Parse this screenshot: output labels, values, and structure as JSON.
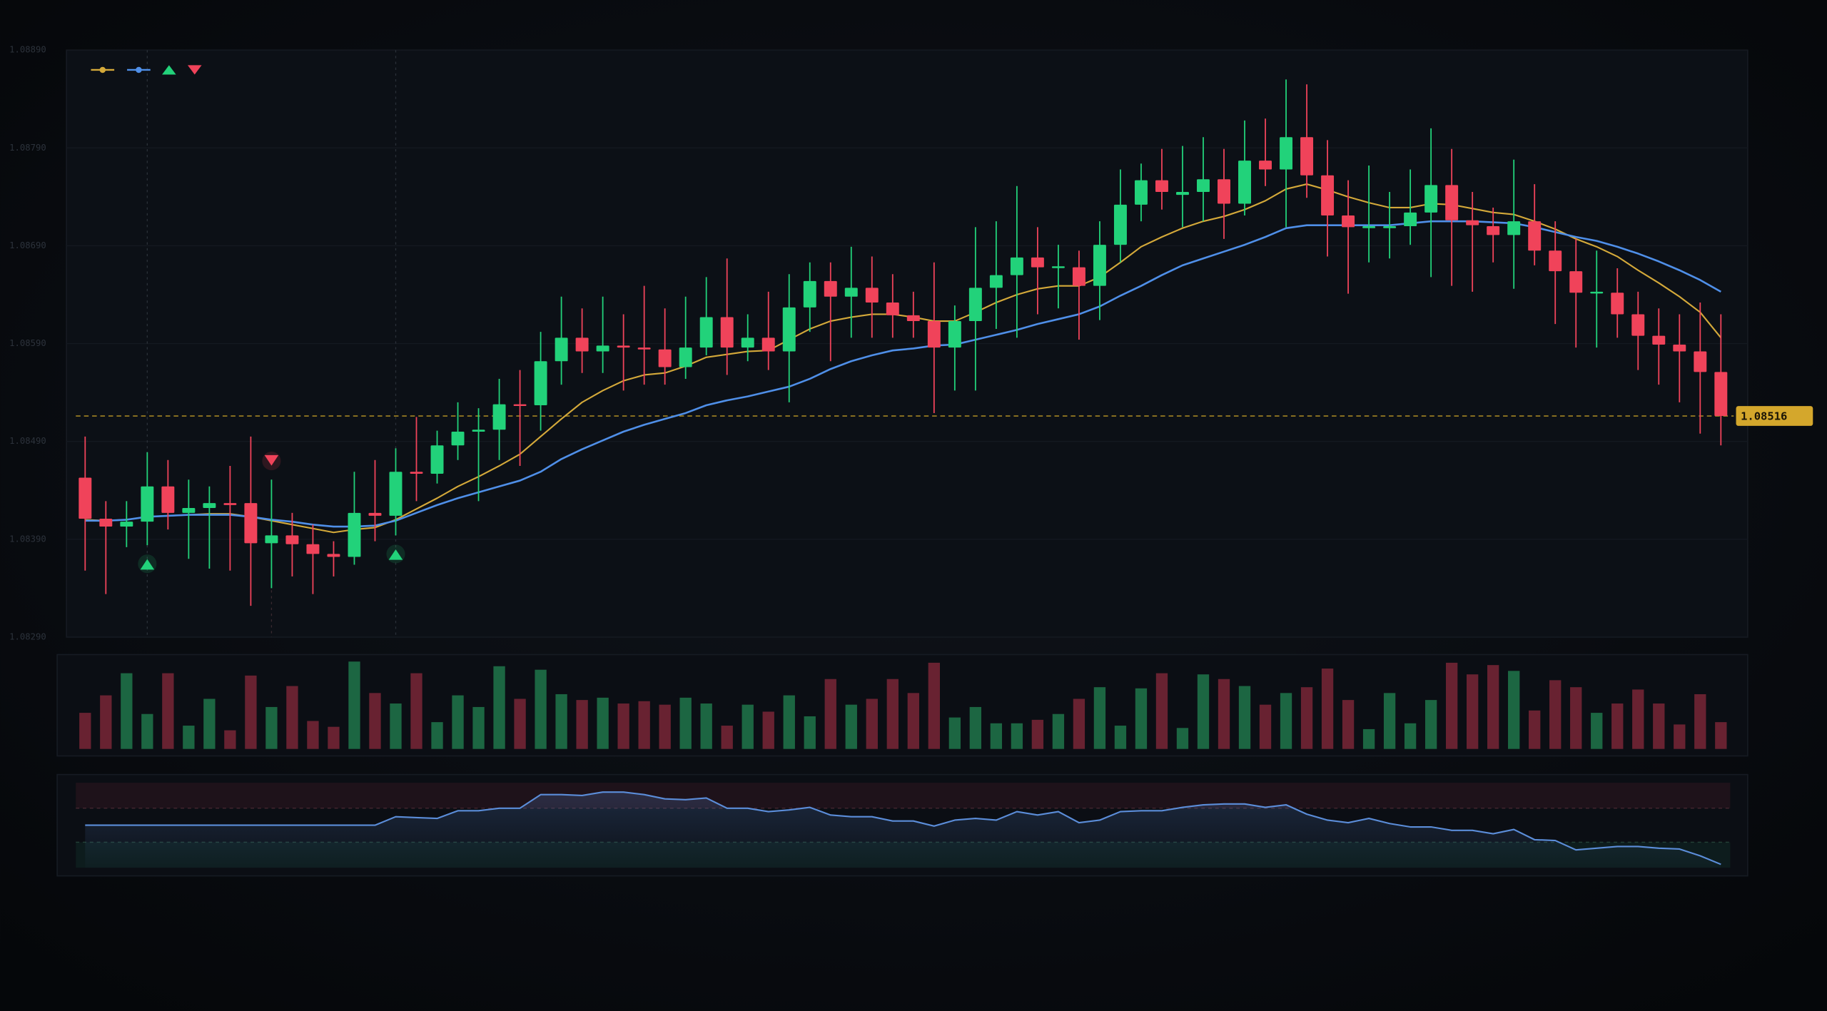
{
  "chart_data": {
    "type": "candlestick",
    "open": [
      1.08453,
      1.08411,
      1.08403,
      1.08408,
      1.08444,
      1.08417,
      1.08422,
      1.08427,
      1.08427,
      1.08386,
      1.08394,
      1.08385,
      1.08375,
      1.08372,
      1.08417,
      1.08414,
      1.08459,
      1.08457,
      1.08486,
      1.085,
      1.08502,
      1.08528,
      1.08527,
      1.08572,
      1.08596,
      1.08582,
      1.08588,
      1.08586,
      1.08584,
      1.08566,
      1.08586,
      1.08617,
      1.08586,
      1.08596,
      1.08582,
      1.08627,
      1.08654,
      1.08638,
      1.08647,
      1.08632,
      1.08619,
      1.08613,
      1.08586,
      1.08613,
      1.08647,
      1.0866,
      1.08678,
      1.08668,
      1.08668,
      1.08649,
      1.08691,
      1.08732,
      1.08757,
      1.08742,
      1.08745,
      1.08758,
      1.08733,
      1.08777,
      1.08768,
      1.08801,
      1.08762,
      1.08721,
      1.08708,
      1.08708,
      1.0871,
      1.08724,
      1.08752,
      1.08716,
      1.0871,
      1.08701,
      1.08715,
      1.08685,
      1.08664,
      1.08642,
      1.08642,
      1.0862,
      1.08598,
      1.08589,
      1.08582,
      1.08561
    ],
    "high": [
      1.08495,
      1.08429,
      1.08429,
      1.08479,
      1.08471,
      1.08451,
      1.08444,
      1.08465,
      1.08495,
      1.08451,
      1.08417,
      1.08405,
      1.08388,
      1.08459,
      1.08471,
      1.08483,
      1.08515,
      1.08501,
      1.0853,
      1.08524,
      1.08554,
      1.08563,
      1.08602,
      1.08638,
      1.08626,
      1.08638,
      1.0862,
      1.08649,
      1.08626,
      1.08638,
      1.08658,
      1.08677,
      1.0862,
      1.08643,
      1.08661,
      1.08673,
      1.08673,
      1.08689,
      1.08679,
      1.08661,
      1.08643,
      1.08673,
      1.08629,
      1.08709,
      1.08715,
      1.08751,
      1.08709,
      1.08691,
      1.08685,
      1.08715,
      1.08768,
      1.08774,
      1.08789,
      1.08792,
      1.08801,
      1.08789,
      1.08818,
      1.0882,
      1.0886,
      1.08855,
      1.08798,
      1.08757,
      1.08772,
      1.08745,
      1.08768,
      1.0881,
      1.08789,
      1.08745,
      1.08729,
      1.08778,
      1.08753,
      1.08715,
      1.08697,
      1.08685,
      1.08667,
      1.08643,
      1.08626,
      1.0862,
      1.08632,
      1.0862
    ],
    "low": [
      1.08358,
      1.08334,
      1.08382,
      1.08384,
      1.084,
      1.0837,
      1.0836,
      1.08358,
      1.08322,
      1.0834,
      1.08352,
      1.08334,
      1.08352,
      1.08364,
      1.08388,
      1.08394,
      1.08429,
      1.08447,
      1.08471,
      1.08429,
      1.08471,
      1.08465,
      1.08501,
      1.08548,
      1.0856,
      1.0856,
      1.08542,
      1.08548,
      1.08548,
      1.08554,
      1.08578,
      1.08558,
      1.08572,
      1.08563,
      1.0853,
      1.08602,
      1.08572,
      1.08596,
      1.08596,
      1.08596,
      1.08596,
      1.08519,
      1.08542,
      1.08542,
      1.08605,
      1.08596,
      1.0862,
      1.08626,
      1.08594,
      1.08614,
      1.08673,
      1.08715,
      1.08727,
      1.08709,
      1.08715,
      1.08697,
      1.08721,
      1.08751,
      1.08709,
      1.08739,
      1.08679,
      1.08641,
      1.08673,
      1.08677,
      1.08691,
      1.08658,
      1.08649,
      1.08643,
      1.08673,
      1.08646,
      1.0867,
      1.0861,
      1.08586,
      1.08586,
      1.08596,
      1.08563,
      1.08548,
      1.0853,
      1.08498,
      1.08486
    ],
    "close": [
      1.08411,
      1.08403,
      1.08408,
      1.08444,
      1.08417,
      1.08422,
      1.08427,
      1.08425,
      1.08386,
      1.08394,
      1.08385,
      1.08375,
      1.08372,
      1.08417,
      1.08414,
      1.08459,
      1.08457,
      1.08486,
      1.085,
      1.08502,
      1.08528,
      1.08527,
      1.08572,
      1.08596,
      1.08582,
      1.08588,
      1.08586,
      1.08584,
      1.08566,
      1.08586,
      1.08617,
      1.08586,
      1.08596,
      1.08582,
      1.08627,
      1.08654,
      1.08638,
      1.08647,
      1.08632,
      1.08619,
      1.08613,
      1.08586,
      1.08613,
      1.08647,
      1.0866,
      1.08678,
      1.08668,
      1.08669,
      1.08649,
      1.08691,
      1.08732,
      1.08757,
      1.08745,
      1.08745,
      1.08758,
      1.08733,
      1.08777,
      1.08768,
      1.08801,
      1.08762,
      1.08721,
      1.08709,
      1.0871,
      1.0871,
      1.08724,
      1.08752,
      1.08716,
      1.08711,
      1.08701,
      1.08715,
      1.08685,
      1.08664,
      1.08642,
      1.08643,
      1.0862,
      1.08598,
      1.08589,
      1.08582,
      1.08561,
      1.08516
    ],
    "up_color": "#22d27a",
    "down_color": "#f0435a",
    "series": [
      {
        "color": "#d4a93a",
        "values": [
          1.0841,
          1.08409,
          1.0841,
          1.08413,
          1.08414,
          1.08415,
          1.08416,
          1.08416,
          1.08413,
          1.08409,
          1.08405,
          1.08401,
          1.08397,
          1.084,
          1.08402,
          1.0841,
          1.08421,
          1.08432,
          1.08444,
          1.08454,
          1.08465,
          1.08477,
          1.08495,
          1.08513,
          1.0853,
          1.08542,
          1.08552,
          1.08558,
          1.0856,
          1.08567,
          1.08576,
          1.08579,
          1.08582,
          1.08583,
          1.08594,
          1.08605,
          1.08613,
          1.08617,
          1.0862,
          1.0862,
          1.08617,
          1.08613,
          1.08613,
          1.08622,
          1.08632,
          1.0864,
          1.08646,
          1.08649,
          1.08649,
          1.08658,
          1.08673,
          1.08689,
          1.08699,
          1.08708,
          1.08715,
          1.0872,
          1.08727,
          1.08736,
          1.08748,
          1.08753,
          1.08747,
          1.0874,
          1.08734,
          1.08729,
          1.08729,
          1.08733,
          1.08732,
          1.08728,
          1.08724,
          1.08722,
          1.08715,
          1.08707,
          1.08697,
          1.08689,
          1.08679,
          1.08665,
          1.08652,
          1.08638,
          1.08622,
          1.08596
        ]
      },
      {
        "color": "#4f8fe8",
        "values": [
          1.08409,
          1.08409,
          1.0841,
          1.08413,
          1.08414,
          1.08415,
          1.08415,
          1.08415,
          1.08413,
          1.0841,
          1.08408,
          1.08405,
          1.08403,
          1.08403,
          1.08404,
          1.08409,
          1.08417,
          1.08425,
          1.08432,
          1.08438,
          1.08444,
          1.0845,
          1.08459,
          1.08472,
          1.08482,
          1.08491,
          1.085,
          1.08507,
          1.08513,
          1.08519,
          1.08527,
          1.08532,
          1.08536,
          1.08541,
          1.08546,
          1.08554,
          1.08564,
          1.08572,
          1.08578,
          1.08583,
          1.08585,
          1.08588,
          1.08589,
          1.08594,
          1.08599,
          1.08604,
          1.0861,
          1.08615,
          1.0862,
          1.08628,
          1.08639,
          1.08649,
          1.0866,
          1.0867,
          1.08677,
          1.08684,
          1.08691,
          1.08699,
          1.08708,
          1.08711,
          1.08711,
          1.08711,
          1.08711,
          1.08711,
          1.08713,
          1.08715,
          1.08715,
          1.08715,
          1.08714,
          1.08713,
          1.08709,
          1.08704,
          1.08699,
          1.08695,
          1.08689,
          1.08682,
          1.08674,
          1.08665,
          1.08655,
          1.08643
        ]
      }
    ],
    "buy_signals": [
      3,
      15
    ],
    "sell_signals": [
      9
    ],
    "ylim": [
      1.0829,
      1.0889
    ],
    "yticks": [
      {
        "value": 1.0889,
        "label": "1.08890"
      },
      {
        "value": 1.0879,
        "label": "1.08790"
      },
      {
        "value": 1.0869,
        "label": "1.08690"
      },
      {
        "value": 1.0859,
        "label": "1.08590"
      },
      {
        "value": 1.0849,
        "label": "1.08490"
      },
      {
        "value": 1.0839,
        "label": "1.08390"
      },
      {
        "value": 1.0829,
        "label": "1.08290"
      }
    ],
    "volume": [
      31,
      46,
      65,
      30,
      65,
      20,
      43,
      16,
      63,
      36,
      54,
      24,
      19,
      75,
      48,
      39,
      65,
      23,
      46,
      36,
      71,
      43,
      68,
      47,
      42,
      44,
      39,
      41,
      38,
      44,
      39,
      20,
      38,
      32,
      46,
      28,
      60,
      38,
      43,
      60,
      48,
      74,
      27,
      36,
      22,
      22,
      25,
      30,
      43,
      53,
      20,
      52,
      65,
      18,
      64,
      60,
      54,
      38,
      48,
      53,
      69,
      42,
      17,
      48,
      22,
      42,
      74,
      64,
      72,
      67,
      33,
      59,
      53,
      31,
      39,
      51,
      39,
      21,
      47,
      23
    ],
    "volume_ylim": [
      0,
      80
    ],
    "rsi": [
      50,
      50,
      50,
      50,
      50,
      50,
      50,
      50,
      50,
      50,
      50,
      50,
      50,
      50,
      50,
      60,
      59,
      58,
      67,
      67,
      70,
      70,
      86,
      86,
      85,
      89,
      89,
      86,
      81,
      80,
      82,
      70,
      70,
      66,
      68,
      71,
      62,
      60,
      60,
      55,
      55,
      49,
      56,
      58,
      56,
      66,
      62,
      66,
      53,
      56,
      66,
      67,
      67,
      71,
      74,
      75,
      75,
      71,
      74,
      63,
      56,
      53,
      58,
      52,
      48,
      48,
      44,
      44,
      40,
      45,
      33,
      32,
      21,
      23,
      25,
      25,
      23,
      22,
      14,
      4
    ],
    "rsi_color": "#5b8dd9",
    "rsi_ylim": [
      0,
      100
    ],
    "rsi_levels": [
      70,
      30
    ]
  }
}
